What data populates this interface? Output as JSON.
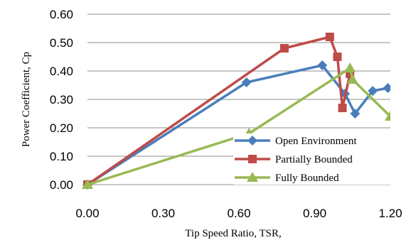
{
  "chart_data": {
    "type": "line",
    "title": "",
    "xlabel": "Tip Speed Ratio, TSR,",
    "ylabel": "Power Coefficient, Cp",
    "xlim": [
      0,
      1.2
    ],
    "ylim": [
      0,
      0.6
    ],
    "xticks": [
      "0.00",
      "0.30",
      "0.60",
      "0.90",
      "1.20"
    ],
    "yticks": [
      "0.00",
      "0.10",
      "0.20",
      "0.30",
      "0.40",
      "0.50",
      "0.60"
    ],
    "grid": "horizontal",
    "legend_position": "bottom-right",
    "series": [
      {
        "name": "Open Environment",
        "color": "#4a7ebb",
        "marker": "diamond",
        "points": [
          [
            0,
            0
          ],
          [
            0.63,
            0.36
          ],
          [
            0.93,
            0.42
          ],
          [
            1.02,
            0.32
          ],
          [
            1.06,
            0.25
          ],
          [
            1.13,
            0.33
          ],
          [
            1.19,
            0.34
          ]
        ]
      },
      {
        "name": "Partially Bounded",
        "color": "#be4b48",
        "marker": "square",
        "points": [
          [
            0,
            0
          ],
          [
            0.78,
            0.48
          ],
          [
            0.96,
            0.52
          ],
          [
            0.99,
            0.45
          ],
          [
            1.01,
            0.27
          ],
          [
            1.04,
            0.39
          ]
        ]
      },
      {
        "name": "Fully Bounded",
        "color": "#98b954",
        "marker": "triangle",
        "points": [
          [
            0,
            0
          ],
          [
            0.64,
            0.18
          ],
          [
            1.04,
            0.41
          ],
          [
            1.05,
            0.37
          ],
          [
            1.2,
            0.24
          ]
        ]
      }
    ]
  }
}
